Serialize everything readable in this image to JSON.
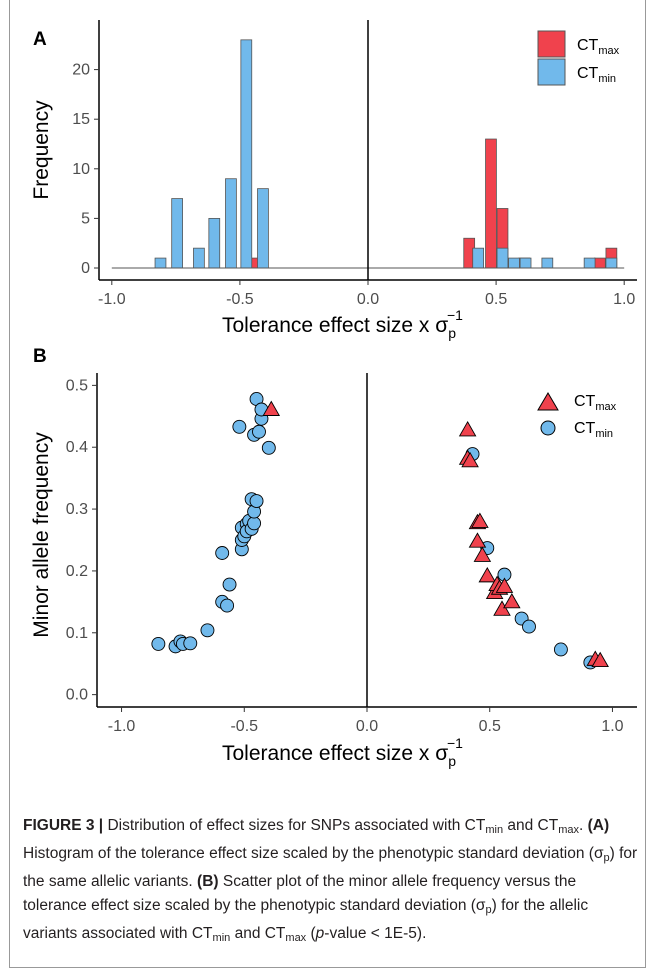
{
  "chart_data": [
    {
      "panel": "A",
      "type": "histogram",
      "xlabel": "Tolerance effect size  x  σp−1",
      "ylabel": "Frequency",
      "xlim": [
        -1.05,
        1.05
      ],
      "ylim": [
        0,
        25
      ],
      "xticks": [
        "-1.0",
        "-0.5",
        "0.0",
        "0.5",
        "1.0"
      ],
      "yticks": [
        "0",
        "5",
        "10",
        "15",
        "20"
      ],
      "bin_width": 0.0425,
      "grid": false,
      "legend_position": "top-right",
      "legend": [
        "CTmax",
        "CTmin"
      ],
      "series": [
        {
          "name": "CTmax",
          "color": "#f0424d",
          "bins": [
            {
              "x": -0.435,
              "y": 1
            },
            {
              "x": 0.395,
              "y": 3
            },
            {
              "x": 0.48,
              "y": 13
            },
            {
              "x": 0.525,
              "y": 6
            },
            {
              "x": 0.61,
              "y": 1
            },
            {
              "x": 0.905,
              "y": 1
            },
            {
              "x": 0.95,
              "y": 2
            }
          ]
        },
        {
          "name": "CTmin",
          "color": "#71b9eb",
          "bins": [
            {
              "x": -0.81,
              "y": 1
            },
            {
              "x": -0.745,
              "y": 7
            },
            {
              "x": -0.66,
              "y": 2
            },
            {
              "x": -0.6,
              "y": 5
            },
            {
              "x": -0.535,
              "y": 9
            },
            {
              "x": -0.475,
              "y": 23
            },
            {
              "x": -0.41,
              "y": 8
            },
            {
              "x": 0.43,
              "y": 2
            },
            {
              "x": 0.525,
              "y": 2
            },
            {
              "x": 0.57,
              "y": 1
            },
            {
              "x": 0.615,
              "y": 1
            },
            {
              "x": 0.7,
              "y": 1
            },
            {
              "x": 0.865,
              "y": 1
            },
            {
              "x": 0.95,
              "y": 1
            }
          ]
        }
      ]
    },
    {
      "panel": "B",
      "type": "scatter",
      "xlabel": "Tolerance effect size  x  σp−1",
      "ylabel": "Minor allele frequency",
      "xlim": [
        -1.1,
        1.1
      ],
      "ylim": [
        -0.02,
        0.52
      ],
      "xticks": [
        "-1.0",
        "-0.5",
        "0.0",
        "0.5",
        "1.0"
      ],
      "yticks": [
        "0.0",
        "0.1",
        "0.2",
        "0.3",
        "0.4",
        "0.5"
      ],
      "grid": false,
      "legend_position": "top-right",
      "legend": [
        "CTmax",
        "CTmin"
      ],
      "series": [
        {
          "name": "CTmax",
          "marker": "triangle",
          "color": "#f0424d",
          "points": [
            [
              -0.39,
              0.461
            ],
            [
              0.41,
              0.428
            ],
            [
              0.41,
              0.382
            ],
            [
              0.42,
              0.378
            ],
            [
              0.45,
              0.278
            ],
            [
              0.46,
              0.28
            ],
            [
              0.45,
              0.248
            ],
            [
              0.47,
              0.225
            ],
            [
              0.49,
              0.192
            ],
            [
              0.52,
              0.165
            ],
            [
              0.53,
              0.178
            ],
            [
              0.54,
              0.172
            ],
            [
              0.56,
              0.175
            ],
            [
              0.55,
              0.138
            ],
            [
              0.59,
              0.15
            ],
            [
              0.93,
              0.057
            ],
            [
              0.95,
              0.055
            ]
          ]
        },
        {
          "name": "CTmin",
          "marker": "circle",
          "color": "#71b9eb",
          "points": [
            [
              -0.85,
              0.082
            ],
            [
              -0.78,
              0.078
            ],
            [
              -0.76,
              0.086
            ],
            [
              -0.75,
              0.082
            ],
            [
              -0.72,
              0.083
            ],
            [
              -0.65,
              0.104
            ],
            [
              -0.59,
              0.229
            ],
            [
              -0.59,
              0.15
            ],
            [
              -0.57,
              0.144
            ],
            [
              -0.56,
              0.178
            ],
            [
              -0.52,
              0.433
            ],
            [
              -0.51,
              0.235
            ],
            [
              -0.51,
              0.25
            ],
            [
              -0.51,
              0.27
            ],
            [
              -0.5,
              0.256
            ],
            [
              -0.49,
              0.276
            ],
            [
              -0.49,
              0.264
            ],
            [
              -0.48,
              0.281
            ],
            [
              -0.47,
              0.316
            ],
            [
              -0.47,
              0.268
            ],
            [
              -0.46,
              0.277
            ],
            [
              -0.46,
              0.296
            ],
            [
              -0.45,
              0.313
            ],
            [
              -0.46,
              0.42
            ],
            [
              -0.45,
              0.478
            ],
            [
              -0.44,
              0.425
            ],
            [
              -0.43,
              0.446
            ],
            [
              -0.43,
              0.461
            ],
            [
              -0.4,
              0.399
            ],
            [
              0.43,
              0.389
            ],
            [
              0.49,
              0.237
            ],
            [
              0.56,
              0.194
            ],
            [
              0.63,
              0.123
            ],
            [
              0.66,
              0.11
            ],
            [
              0.79,
              0.073
            ],
            [
              0.91,
              0.052
            ]
          ]
        }
      ]
    }
  ],
  "labels": {
    "panel_a": "A",
    "panel_b": "B",
    "ylabel_a": "Frequency",
    "ylabel_b": "Minor allele frequency",
    "xlabel_main": "Tolerance effect size  x  σ",
    "xlabel_sub": "p",
    "xlabel_sup": "−1",
    "legend_ct": "CT",
    "legend_max": "max",
    "legend_min": "min"
  },
  "caption": {
    "label": "FIGURE 3 |",
    "t1": " Distribution of effect sizes for SNPs associated with CT",
    "s1": "min",
    "t2": " and CT",
    "s2": "max",
    "t3": ". ",
    "b1": "(A)",
    "t4": " Histogram of the tolerance effect size scaled by the phenotypic standard deviation (σ",
    "s3": "p",
    "t5": ") for the same allelic variants. ",
    "b2": "(B)",
    "t6": " Scatter plot of the minor allele frequency versus the tolerance effect size scaled by the phenotypic standard deviation (σ",
    "s4": "p",
    "t7": ") for the allelic variants associated with CT",
    "s5": "min",
    "t8": " and CT",
    "s6": "max",
    "t9": " (",
    "i1": "p",
    "t10": "-value < 1E-5)."
  },
  "colors": {
    "ctmax": "#f0424d",
    "ctmin": "#71b9eb",
    "outline": "#555555"
  }
}
